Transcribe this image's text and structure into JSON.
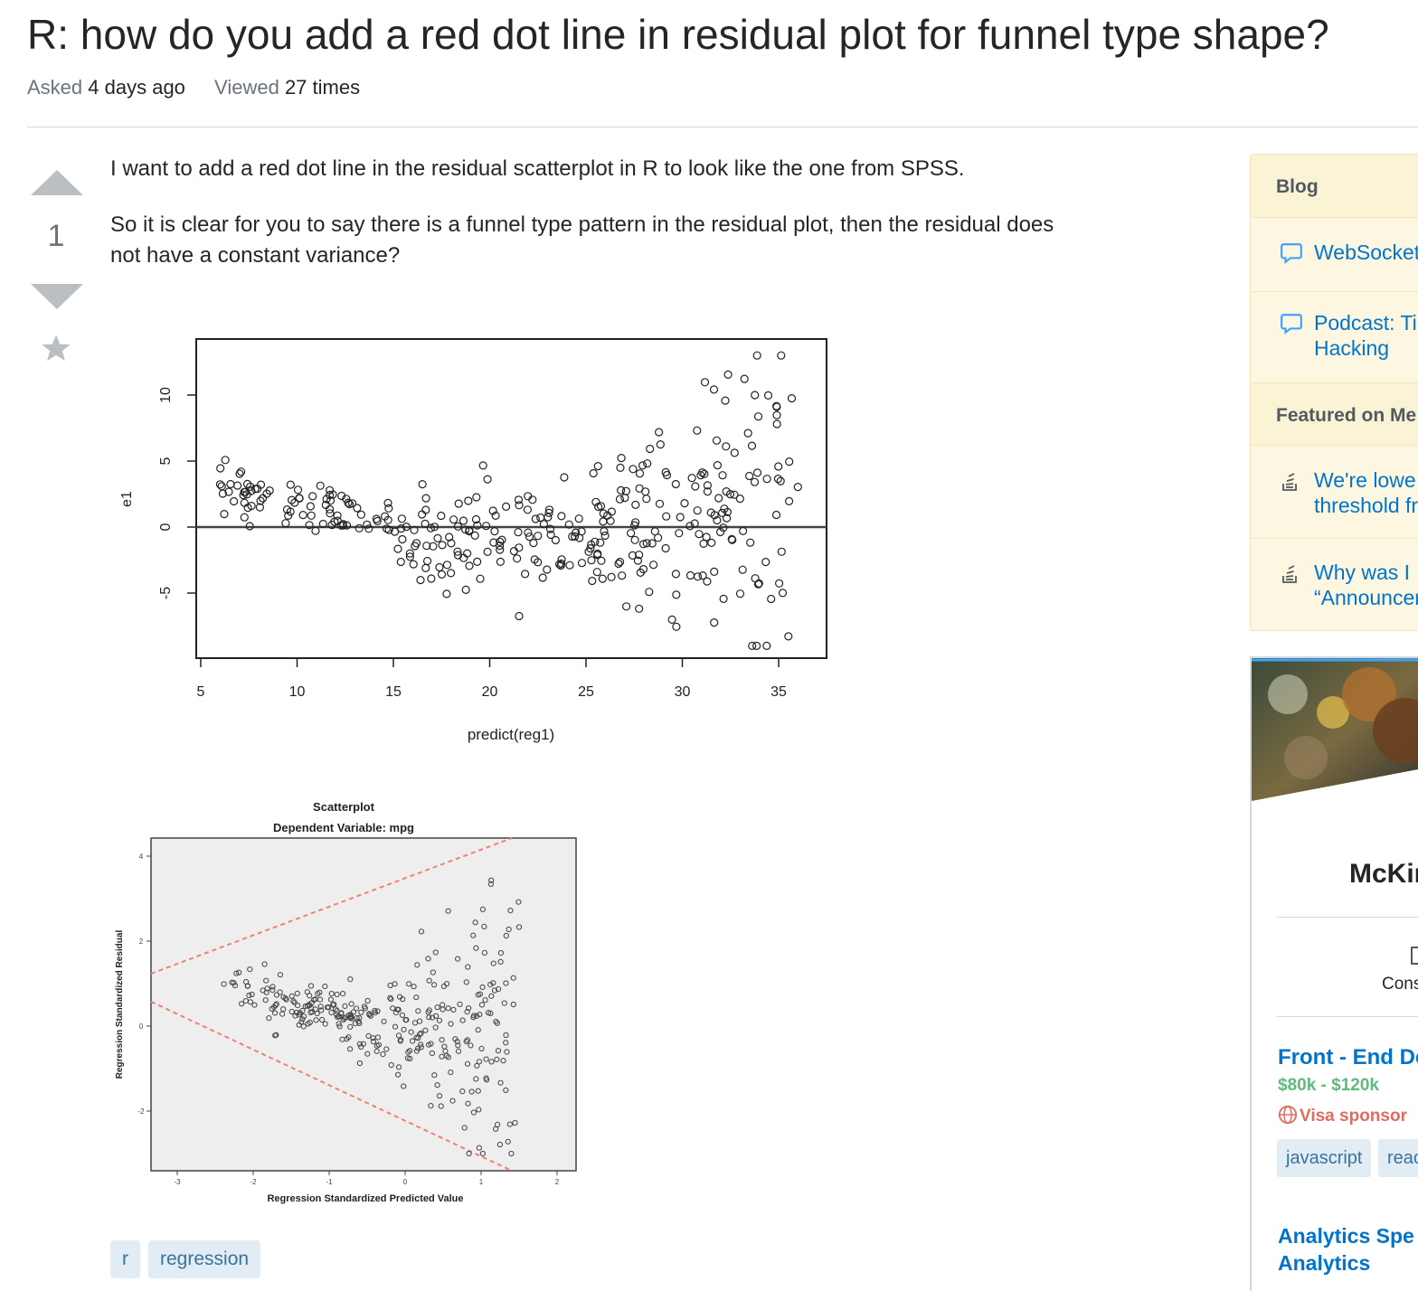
{
  "question": {
    "title": "R: how do you add a red dot line in residual plot for funnel type shape?",
    "asked_label": "Asked",
    "asked_value": "4 days ago",
    "viewed_label": "Viewed",
    "viewed_value": "27 times",
    "vote_count": "1",
    "body_p1": "I want to add a red dot line in the residual scatterplot in R to look like the one from SPSS.",
    "body_p2_line1": "So it is clear for you to say there is a funnel type pattern in the residual plot, then the residual does",
    "body_p2_line2": "not have a constant variance?",
    "tags": [
      "r",
      "regression"
    ]
  },
  "plots": {
    "r_plot": {
      "ylabel": "e1",
      "xlabel": "predict(reg1)",
      "xticks": [
        "5",
        "10",
        "15",
        "20",
        "25",
        "30",
        "35"
      ],
      "yticks": [
        "-5",
        "0",
        "5",
        "10"
      ]
    },
    "spss_plot": {
      "title": "Scatterplot",
      "subtitle": "Dependent Variable: mpg",
      "xlabel": "Regression Standardized Predicted Value",
      "ylabel": "Regression Standardized Residual",
      "xticks": [
        "-3",
        "-2",
        "-1",
        "0",
        "1",
        "2"
      ],
      "yticks": [
        "4",
        "2",
        "0",
        "-2"
      ],
      "line_color": "#f08070"
    }
  },
  "sidebar": {
    "blog_header": "Blog",
    "blog_items": [
      {
        "line1": "WebSocket",
        "line2": ""
      },
      {
        "line1": "Podcast: Ti",
        "line2": "Hacking"
      }
    ],
    "meta_header": "Featured on Me",
    "meta_items": [
      {
        "line1": "We're lowe",
        "line2": "threshold fr"
      },
      {
        "line1": "Why was I",
        "line2": "“Announcem"
      }
    ]
  },
  "ad": {
    "company": "McKir",
    "cons": "Cons",
    "job1_title": "Front - End De",
    "job1_salary": "$80k - $120k",
    "job1_visa": "Visa sponsor",
    "job1_tags": [
      "javascript",
      "reac"
    ],
    "job2_line1": "Analytics Spe",
    "job2_line2": "Analytics"
  }
}
